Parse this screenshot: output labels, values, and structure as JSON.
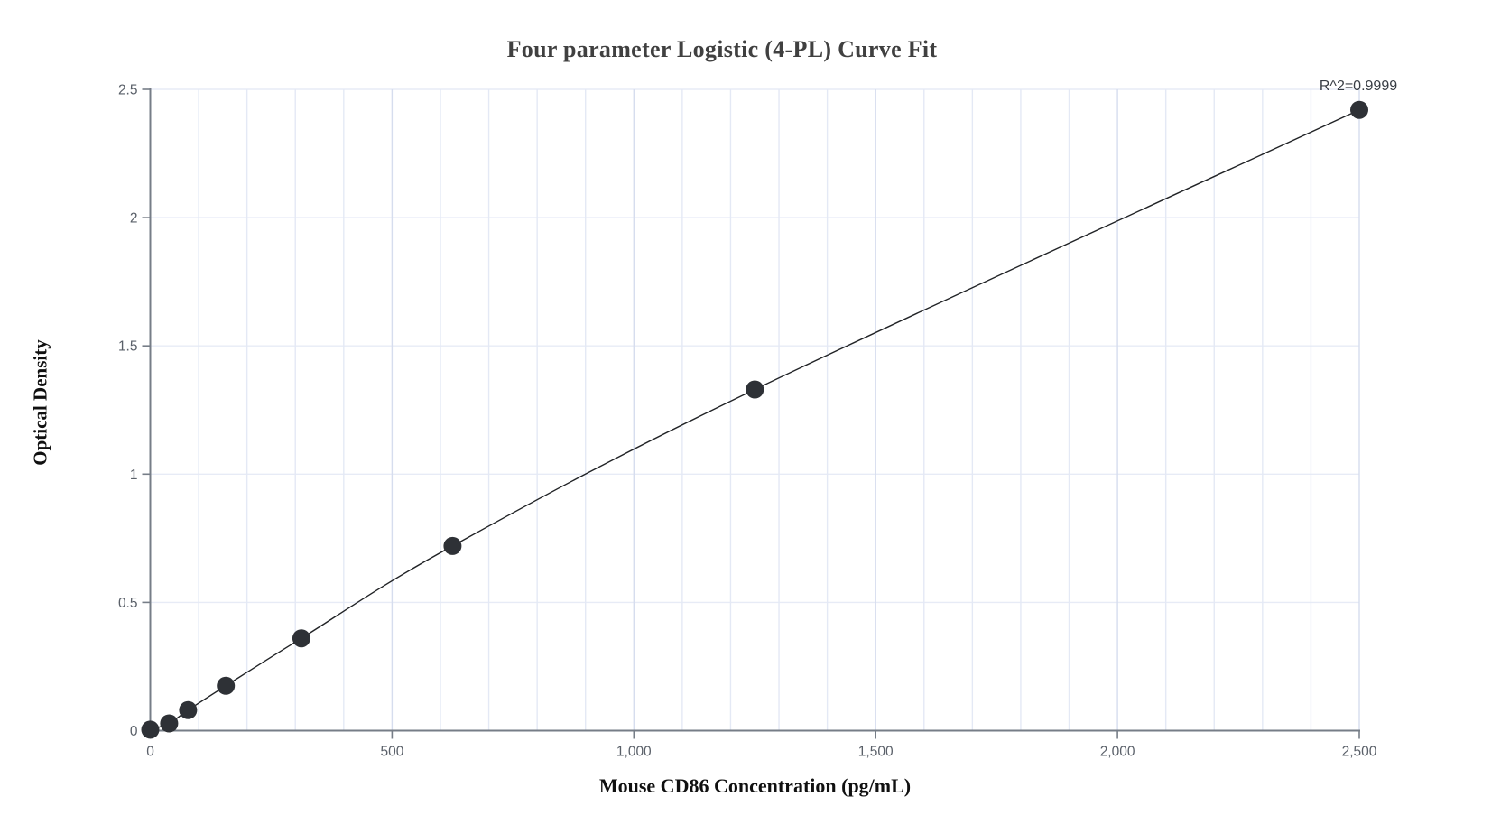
{
  "chart_data": {
    "type": "scatter",
    "title": "Four parameter Logistic (4-PL) Curve Fit",
    "xlabel": "Mouse CD86 Concentration (pg/mL)",
    "ylabel": "Optical Density",
    "annotation": "R^2=0.9999",
    "xlim": [
      0,
      2500
    ],
    "ylim": [
      0,
      2.5
    ],
    "x_ticks": {
      "values": [
        0,
        500,
        1000,
        1500,
        2000,
        2500
      ],
      "labels": [
        "0",
        "500",
        "1,000",
        "1,500",
        "2,000",
        "2,500"
      ]
    },
    "y_ticks": {
      "values": [
        0,
        0.5,
        1,
        1.5,
        2,
        2.5
      ],
      "labels": [
        "0",
        "0.5",
        "1",
        "1.5",
        "2",
        "2.5"
      ]
    },
    "grid": {
      "x_minor_step": 100,
      "x_major_step": 500,
      "y_step": 0.5,
      "grid_on": true
    },
    "legend": "none",
    "points": [
      {
        "x": 0,
        "y": 0.004
      },
      {
        "x": 39.06,
        "y": 0.028
      },
      {
        "x": 78.13,
        "y": 0.08
      },
      {
        "x": 156.25,
        "y": 0.175
      },
      {
        "x": 312.5,
        "y": 0.36
      },
      {
        "x": 625,
        "y": 0.72
      },
      {
        "x": 1250,
        "y": 1.33
      },
      {
        "x": 2500,
        "y": 2.42
      }
    ],
    "fit_line": true,
    "colors": {
      "point": "#2e3136",
      "line": "#212326",
      "axis": "#767d87",
      "grid_minor_v": "#e4e9f5",
      "grid_major_v": "#d6ddee",
      "grid_h": "#e7ebf6",
      "tick_text": "#5a6069",
      "title": "#404040",
      "axis_label": "#101010",
      "annotation": "#383d44",
      "background": "#ffffff"
    }
  }
}
